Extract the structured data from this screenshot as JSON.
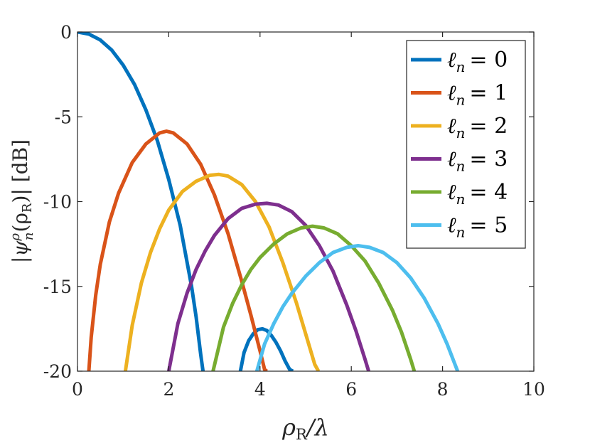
{
  "chart_data": {
    "type": "line",
    "xlabel": {
      "main": "ρ",
      "sub": "R",
      "tail": "/λ"
    },
    "ylabel": {
      "text1": "|ψ",
      "sup": "ρ",
      "sub": "n",
      "text2": "(ρ",
      "sub2": "R",
      "text3": ")| [dB]"
    },
    "xlim": [
      0,
      10
    ],
    "ylim": [
      -20,
      0
    ],
    "x_ticks": [
      0,
      2,
      4,
      6,
      8,
      10
    ],
    "x_tick_labels": [
      "0",
      "2",
      "4",
      "6",
      "8",
      "10"
    ],
    "y_ticks": [
      0,
      -5,
      -10,
      -15,
      -20
    ],
    "y_tick_labels": [
      "0",
      "-5",
      "-10",
      "-15",
      "-20"
    ],
    "grid": false,
    "legend_position": "top-right",
    "series": [
      {
        "name": "ℓn = 0",
        "legend_var": "ℓ",
        "legend_sub": "n",
        "legend_rhs": "= 0",
        "color": "#0072BD",
        "segments": [
          {
            "x": [
              0,
              0.25,
              0.5,
              0.75,
              1.0,
              1.25,
              1.5,
              1.75,
              2.0,
              2.25,
              2.5,
              2.6,
              2.7,
              2.75
            ],
            "y": [
              0,
              -0.12,
              -0.47,
              -1.07,
              -1.95,
              -3.1,
              -4.6,
              -6.4,
              -8.7,
              -11.4,
              -15.0,
              -16.8,
              -19.0,
              -20
            ]
          },
          {
            "x": [
              3.57,
              3.65,
              3.75,
              3.85,
              3.95,
              4.05,
              4.15,
              4.25,
              4.35,
              4.45,
              4.55,
              4.65,
              4.72
            ],
            "y": [
              -20,
              -18.9,
              -18.2,
              -17.8,
              -17.55,
              -17.5,
              -17.6,
              -17.9,
              -18.3,
              -18.8,
              -19.4,
              -19.9,
              -20
            ]
          }
        ]
      },
      {
        "name": "ℓn = 1",
        "legend_var": "ℓ",
        "legend_sub": "n",
        "legend_rhs": "= 1",
        "color": "#D95319",
        "segments": [
          {
            "x": [
              0.25,
              0.3,
              0.4,
              0.5,
              0.7,
              0.9,
              1.2,
              1.5,
              1.8,
              1.95,
              2.1,
              2.4,
              2.7,
              3.0,
              3.3,
              3.6,
              3.8,
              4.0,
              4.1,
              4.15
            ],
            "y": [
              -20,
              -18.0,
              -15.5,
              -13.7,
              -11.2,
              -9.5,
              -7.7,
              -6.6,
              -5.95,
              -5.85,
              -5.95,
              -6.6,
              -7.8,
              -9.6,
              -11.9,
              -14.7,
              -16.7,
              -18.8,
              -19.9,
              -20
            ]
          }
        ]
      },
      {
        "name": "ℓn = 2",
        "legend_var": "ℓ",
        "legend_sub": "n",
        "legend_rhs": "= 2",
        "color": "#EDB120",
        "segments": [
          {
            "x": [
              1.05,
              1.2,
              1.4,
              1.6,
              1.8,
              2.0,
              2.3,
              2.6,
              2.9,
              3.1,
              3.3,
              3.6,
              3.9,
              4.2,
              4.5,
              4.8,
              5.0,
              5.2,
              5.28
            ],
            "y": [
              -20,
              -17.3,
              -14.8,
              -13.0,
              -11.6,
              -10.5,
              -9.4,
              -8.8,
              -8.45,
              -8.4,
              -8.5,
              -9.0,
              -10.0,
              -11.5,
              -13.6,
              -16.0,
              -17.8,
              -19.6,
              -20
            ]
          }
        ]
      },
      {
        "name": "ℓn = 3",
        "legend_var": "ℓ",
        "legend_sub": "n",
        "legend_rhs": "= 3",
        "color": "#7E2F8E",
        "segments": [
          {
            "x": [
              2.0,
              2.2,
              2.4,
              2.6,
              2.8,
              3.0,
              3.3,
              3.6,
              3.9,
              4.15,
              4.4,
              4.7,
              5.0,
              5.3,
              5.6,
              5.9,
              6.1,
              6.3,
              6.38
            ],
            "y": [
              -20,
              -17.2,
              -15.4,
              -14.0,
              -12.9,
              -12.0,
              -11.0,
              -10.4,
              -10.15,
              -10.1,
              -10.2,
              -10.6,
              -11.4,
              -12.6,
              -14.1,
              -16.1,
              -17.6,
              -19.3,
              -20
            ]
          }
        ]
      },
      {
        "name": "ℓn = 4",
        "legend_var": "ℓ",
        "legend_sub": "n",
        "legend_rhs": "= 4",
        "color": "#77AC30",
        "segments": [
          {
            "x": [
              2.97,
              3.2,
              3.4,
              3.6,
              3.8,
              4.0,
              4.3,
              4.6,
              4.9,
              5.15,
              5.4,
              5.7,
              6.0,
              6.3,
              6.6,
              6.9,
              7.1,
              7.3,
              7.38
            ],
            "y": [
              -20,
              -17.4,
              -16.0,
              -14.9,
              -14.0,
              -13.3,
              -12.5,
              -11.9,
              -11.55,
              -11.45,
              -11.55,
              -11.9,
              -12.6,
              -13.5,
              -14.8,
              -16.4,
              -17.7,
              -19.3,
              -20
            ]
          }
        ]
      },
      {
        "name": "ℓn = 5",
        "legend_var": "ℓ",
        "legend_sub": "n",
        "legend_rhs": "= 5",
        "color": "#4DBEEE",
        "segments": [
          {
            "x": [
              3.93,
              4.1,
              4.3,
              4.5,
              4.7,
              5.0,
              5.3,
              5.6,
              5.9,
              6.15,
              6.4,
              6.7,
              7.0,
              7.3,
              7.6,
              7.9,
              8.1,
              8.3,
              8.33
            ],
            "y": [
              -20,
              -18.4,
              -17.2,
              -16.2,
              -15.4,
              -14.4,
              -13.6,
              -13.0,
              -12.7,
              -12.6,
              -12.7,
              -13.0,
              -13.6,
              -14.5,
              -15.7,
              -17.2,
              -18.4,
              -19.8,
              -20
            ]
          }
        ]
      }
    ]
  }
}
